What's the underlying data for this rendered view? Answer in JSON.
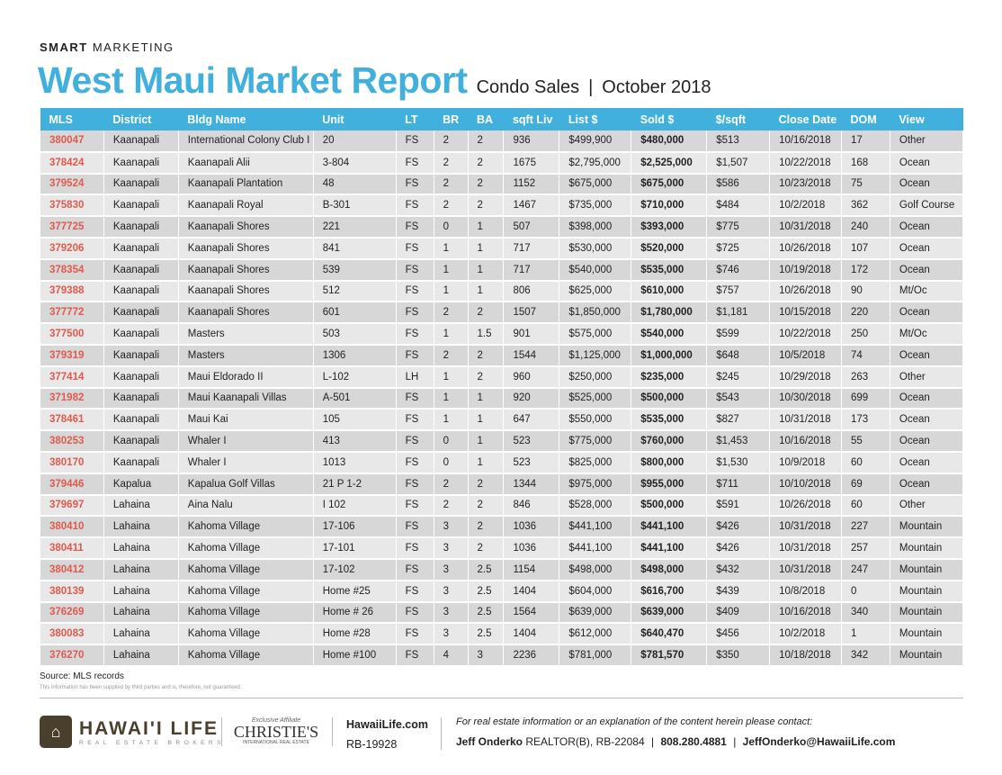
{
  "header": {
    "smart_bold": "SMART",
    "smart_rest": "MARKETING",
    "title": "West Maui Market Report",
    "subtitle": "Condo Sales",
    "separator": "|",
    "period": "October 2018"
  },
  "table": {
    "columns": [
      "MLS",
      "District",
      "Bldg Name",
      "Unit",
      "LT",
      "BR",
      "BA",
      "sqft Liv",
      "List $",
      "Sold $",
      "$/sqft",
      "Close Date",
      "DOM",
      "View"
    ],
    "rows": [
      [
        "380047",
        "Kaanapali",
        "International Colony Club I",
        "20",
        "FS",
        "2",
        "2",
        "936",
        "$499,900",
        "$480,000",
        "$513",
        "10/16/2018",
        "17",
        "Other"
      ],
      [
        "378424",
        "Kaanapali",
        "Kaanapali Alii",
        "3-804",
        "FS",
        "2",
        "2",
        "1675",
        "$2,795,000",
        "$2,525,000",
        "$1,507",
        "10/22/2018",
        "168",
        "Ocean"
      ],
      [
        "379524",
        "Kaanapali",
        "Kaanapali Plantation",
        "48",
        "FS",
        "2",
        "2",
        "1152",
        "$675,000",
        "$675,000",
        "$586",
        "10/23/2018",
        "75",
        "Ocean"
      ],
      [
        "375830",
        "Kaanapali",
        "Kaanapali Royal",
        "B-301",
        "FS",
        "2",
        "2",
        "1467",
        "$735,000",
        "$710,000",
        "$484",
        "10/2/2018",
        "362",
        "Golf Course"
      ],
      [
        "377725",
        "Kaanapali",
        "Kaanapali Shores",
        "221",
        "FS",
        "0",
        "1",
        "507",
        "$398,000",
        "$393,000",
        "$775",
        "10/31/2018",
        "240",
        "Ocean"
      ],
      [
        "379206",
        "Kaanapali",
        "Kaanapali Shores",
        "841",
        "FS",
        "1",
        "1",
        "717",
        "$530,000",
        "$520,000",
        "$725",
        "10/26/2018",
        "107",
        "Ocean"
      ],
      [
        "378354",
        "Kaanapali",
        "Kaanapali Shores",
        "539",
        "FS",
        "1",
        "1",
        "717",
        "$540,000",
        "$535,000",
        "$746",
        "10/19/2018",
        "172",
        "Ocean"
      ],
      [
        "379388",
        "Kaanapali",
        "Kaanapali Shores",
        "512",
        "FS",
        "1",
        "1",
        "806",
        "$625,000",
        "$610,000",
        "$757",
        "10/26/2018",
        "90",
        "Mt/Oc"
      ],
      [
        "377772",
        "Kaanapali",
        "Kaanapali Shores",
        "601",
        "FS",
        "2",
        "2",
        "1507",
        "$1,850,000",
        "$1,780,000",
        "$1,181",
        "10/15/2018",
        "220",
        "Ocean"
      ],
      [
        "377500",
        "Kaanapali",
        "Masters",
        "503",
        "FS",
        "1",
        "1.5",
        "901",
        "$575,000",
        "$540,000",
        "$599",
        "10/22/2018",
        "250",
        "Mt/Oc"
      ],
      [
        "379319",
        "Kaanapali",
        "Masters",
        "1306",
        "FS",
        "2",
        "2",
        "1544",
        "$1,125,000",
        "$1,000,000",
        "$648",
        "10/5/2018",
        "74",
        "Ocean"
      ],
      [
        "377414",
        "Kaanapali",
        "Maui Eldorado II",
        "L-102",
        "LH",
        "1",
        "2",
        "960",
        "$250,000",
        "$235,000",
        "$245",
        "10/29/2018",
        "263",
        "Other"
      ],
      [
        "371982",
        "Kaanapali",
        "Maui Kaanapali Villas",
        "A-501",
        "FS",
        "1",
        "1",
        "920",
        "$525,000",
        "$500,000",
        "$543",
        "10/30/2018",
        "699",
        "Ocean"
      ],
      [
        "378461",
        "Kaanapali",
        "Maui Kai",
        "105",
        "FS",
        "1",
        "1",
        "647",
        "$550,000",
        "$535,000",
        "$827",
        "10/31/2018",
        "173",
        "Ocean"
      ],
      [
        "380253",
        "Kaanapali",
        "Whaler I",
        "413",
        "FS",
        "0",
        "1",
        "523",
        "$775,000",
        "$760,000",
        "$1,453",
        "10/16/2018",
        "55",
        "Ocean"
      ],
      [
        "380170",
        "Kaanapali",
        "Whaler I",
        "1013",
        "FS",
        "0",
        "1",
        "523",
        "$825,000",
        "$800,000",
        "$1,530",
        "10/9/2018",
        "60",
        "Ocean"
      ],
      [
        "379446",
        "Kapalua",
        "Kapalua Golf Villas",
        "21 P 1-2",
        "FS",
        "2",
        "2",
        "1344",
        "$975,000",
        "$955,000",
        "$711",
        "10/10/2018",
        "69",
        "Ocean"
      ],
      [
        "379697",
        "Lahaina",
        "Aina Nalu",
        "I 102",
        "FS",
        "2",
        "2",
        "846",
        "$528,000",
        "$500,000",
        "$591",
        "10/26/2018",
        "60",
        "Other"
      ],
      [
        "380410",
        "Lahaina",
        "Kahoma Village",
        "17-106",
        "FS",
        "3",
        "2",
        "1036",
        "$441,100",
        "$441,100",
        "$426",
        "10/31/2018",
        "227",
        "Mountain"
      ],
      [
        "380411",
        "Lahaina",
        "Kahoma Village",
        "17-101",
        "FS",
        "3",
        "2",
        "1036",
        "$441,100",
        "$441,100",
        "$426",
        "10/31/2018",
        "257",
        "Mountain"
      ],
      [
        "380412",
        "Lahaina",
        "Kahoma Village",
        "17-102",
        "FS",
        "3",
        "2.5",
        "1154",
        "$498,000",
        "$498,000",
        "$432",
        "10/31/2018",
        "247",
        "Mountain"
      ],
      [
        "380139",
        "Lahaina",
        "Kahoma Village",
        "Home #25",
        "FS",
        "3",
        "2.5",
        "1404",
        "$604,000",
        "$616,700",
        "$439",
        "10/8/2018",
        "0",
        "Mountain"
      ],
      [
        "376269",
        "Lahaina",
        "Kahoma Village",
        "Home # 26",
        "FS",
        "3",
        "2.5",
        "1564",
        "$639,000",
        "$639,000",
        "$409",
        "10/16/2018",
        "340",
        "Mountain"
      ],
      [
        "380083",
        "Lahaina",
        "Kahoma Village",
        "Home #28",
        "FS",
        "3",
        "2.5",
        "1404",
        "$612,000",
        "$640,470",
        "$456",
        "10/2/2018",
        "1",
        "Mountain"
      ],
      [
        "376270",
        "Lahaina",
        "Kahoma Village",
        "Home #100",
        "FS",
        "4",
        "3",
        "2236",
        "$781,000",
        "$781,570",
        "$350",
        "10/18/2018",
        "342",
        "Mountain"
      ]
    ]
  },
  "notes": {
    "source": "Source: MLS records",
    "disclaimer": "This information has been supplied by third parties and is, therefore, not guaranteed."
  },
  "footer": {
    "logo_name": "HAWAI'I LIFE",
    "logo_tag": "REAL ESTATE BROKERS",
    "affiliate_label": "Exclusive Affiliate",
    "christies": "CHRISTIE'S",
    "christies_sub": "INTERNATIONAL REAL ESTATE",
    "website": "HawaiiLife.com",
    "license": "RB-19928",
    "contact_prompt": "For real estate information or an explanation of the content herein please contact:",
    "agent_name": "Jeff Onderko",
    "agent_license": "REALTOR(B), RB-22084",
    "phone": "808.280.4881",
    "email": "JeffOnderko@HawaiiLife.com",
    "sep": "|"
  },
  "colors": {
    "accent": "#41b0dc",
    "mls": "#e05a4e",
    "brown": "#4a3e2c"
  }
}
